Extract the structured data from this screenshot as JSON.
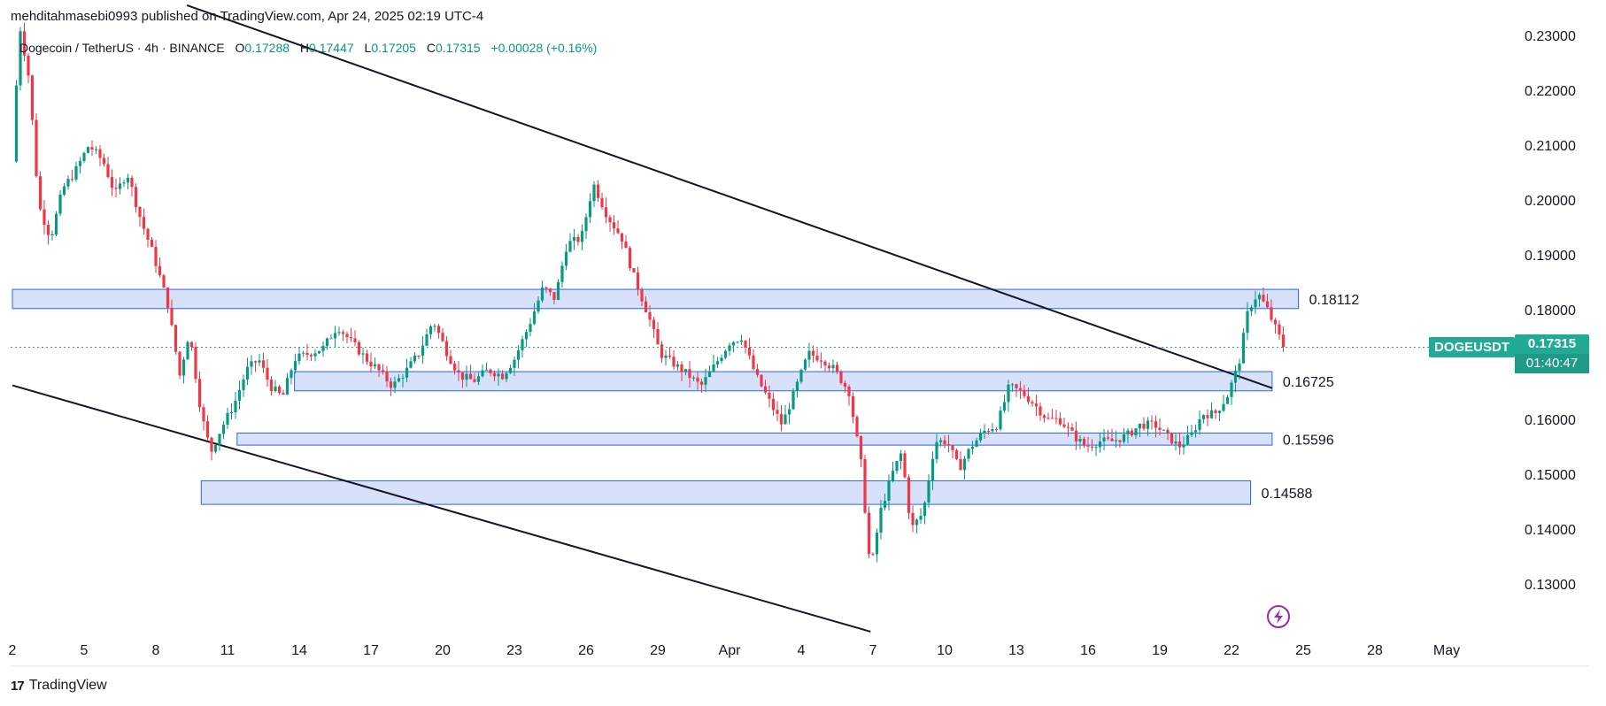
{
  "header": {
    "published_line": "mehditahmasebi0993 published on TradingView.com, Apr 24, 2025 02:19 UTC-4"
  },
  "legend": {
    "symbol": "Dogecoin / TetherUS · 4h · BINANCE",
    "open_label": "O",
    "open": "0.17288",
    "high_label": "H",
    "high": "0.17447",
    "low_label": "L",
    "low": "0.17205",
    "close_label": "C",
    "close": "0.17315",
    "change": "+0.00028 (+0.16%)"
  },
  "price_tag": {
    "symbol": "DOGEUSDT",
    "price": "0.17315",
    "countdown": "01:40:47"
  },
  "brand": {
    "logo_text": "17",
    "name": "TradingView"
  },
  "colors": {
    "up": "#089981",
    "down": "#f23645",
    "zone_fill": "#d1dcf9",
    "zone_stroke": "#2962ff",
    "trendline": "#131722",
    "price_line": "#22ab94",
    "lightning": "#9c27b0"
  },
  "chart_data": {
    "type": "candlestick",
    "symbol": "DOGEUSDT",
    "timeframe": "4h",
    "ylim": [
      0.125,
      0.235
    ],
    "y_ticks": [
      "0.23000",
      "0.22000",
      "0.21000",
      "0.20000",
      "0.19000",
      "0.18000",
      "0.16000",
      "0.15000",
      "0.14000",
      "0.13000"
    ],
    "x_ticks": [
      "2",
      "5",
      "8",
      "11",
      "14",
      "17",
      "20",
      "23",
      "26",
      "29",
      "Apr",
      "4",
      "7",
      "10",
      "13",
      "16",
      "19",
      "22",
      "25",
      "28",
      "May"
    ],
    "x_tick_days": [
      2,
      5,
      8,
      11,
      14,
      17,
      20,
      23,
      26,
      29,
      32,
      35,
      38,
      41,
      44,
      47,
      50,
      53,
      56,
      59,
      62
    ],
    "last_price": 0.17315,
    "zones": [
      {
        "label": "0.18112",
        "top": 0.1837,
        "bottom": 0.1802,
        "start_day": 2.0,
        "end_day": 55.8
      },
      {
        "label": "0.16725",
        "top": 0.1687,
        "bottom": 0.1652,
        "start_day": 13.8,
        "end_day": 54.7
      },
      {
        "label": "0.15596",
        "top": 0.1575,
        "bottom": 0.1553,
        "start_day": 11.4,
        "end_day": 54.7
      },
      {
        "label": "0.14588",
        "top": 0.1488,
        "bottom": 0.1445,
        "start_day": 9.9,
        "end_day": 53.8
      }
    ],
    "trendlines": [
      {
        "name": "upper",
        "x1": 9.3,
        "y1": 0.2355,
        "x2": 54.7,
        "y2": 0.1657
      },
      {
        "name": "lower",
        "x1": 2.0,
        "y1": 0.1662,
        "x2": 37.9,
        "y2": 0.1213
      }
    ],
    "price_path": [
      [
        2.0,
        0.207
      ],
      [
        2.3,
        0.232
      ],
      [
        2.7,
        0.222
      ],
      [
        3.1,
        0.199
      ],
      [
        3.6,
        0.193
      ],
      [
        4.1,
        0.202
      ],
      [
        4.6,
        0.205
      ],
      [
        5.2,
        0.21
      ],
      [
        5.8,
        0.207
      ],
      [
        6.3,
        0.201
      ],
      [
        6.8,
        0.205
      ],
      [
        7.4,
        0.196
      ],
      [
        7.9,
        0.19
      ],
      [
        8.5,
        0.181
      ],
      [
        9.0,
        0.168
      ],
      [
        9.4,
        0.176
      ],
      [
        9.9,
        0.161
      ],
      [
        10.3,
        0.154
      ],
      [
        10.7,
        0.158
      ],
      [
        11.3,
        0.163
      ],
      [
        11.8,
        0.169
      ],
      [
        12.3,
        0.171
      ],
      [
        12.8,
        0.166
      ],
      [
        13.3,
        0.164
      ],
      [
        13.8,
        0.171
      ],
      [
        14.4,
        0.172
      ],
      [
        15.0,
        0.173
      ],
      [
        15.6,
        0.177
      ],
      [
        16.2,
        0.174
      ],
      [
        16.8,
        0.171
      ],
      [
        17.3,
        0.169
      ],
      [
        17.9,
        0.166
      ],
      [
        18.5,
        0.169
      ],
      [
        19.0,
        0.172
      ],
      [
        19.6,
        0.178
      ],
      [
        20.2,
        0.172
      ],
      [
        20.7,
        0.168
      ],
      [
        21.3,
        0.167
      ],
      [
        21.9,
        0.169
      ],
      [
        22.5,
        0.168
      ],
      [
        23.0,
        0.171
      ],
      [
        23.6,
        0.177
      ],
      [
        24.2,
        0.184
      ],
      [
        24.7,
        0.182
      ],
      [
        25.2,
        0.192
      ],
      [
        25.8,
        0.193
      ],
      [
        26.3,
        0.203
      ],
      [
        26.9,
        0.197
      ],
      [
        27.5,
        0.193
      ],
      [
        28.0,
        0.186
      ],
      [
        28.6,
        0.179
      ],
      [
        29.1,
        0.172
      ],
      [
        29.7,
        0.17
      ],
      [
        30.3,
        0.168
      ],
      [
        30.8,
        0.166
      ],
      [
        31.4,
        0.17
      ],
      [
        32.0,
        0.174
      ],
      [
        32.5,
        0.175
      ],
      [
        33.1,
        0.168
      ],
      [
        33.7,
        0.163
      ],
      [
        34.2,
        0.159
      ],
      [
        34.8,
        0.166
      ],
      [
        35.3,
        0.172
      ],
      [
        35.9,
        0.171
      ],
      [
        36.4,
        0.169
      ],
      [
        37.0,
        0.165
      ],
      [
        37.5,
        0.152
      ],
      [
        37.9,
        0.132
      ],
      [
        38.3,
        0.143
      ],
      [
        38.8,
        0.15
      ],
      [
        39.2,
        0.154
      ],
      [
        39.6,
        0.14
      ],
      [
        40.1,
        0.143
      ],
      [
        40.6,
        0.156
      ],
      [
        41.1,
        0.156
      ],
      [
        41.6,
        0.151
      ],
      [
        42.1,
        0.155
      ],
      [
        42.7,
        0.158
      ],
      [
        43.2,
        0.159
      ],
      [
        43.7,
        0.166
      ],
      [
        44.2,
        0.165
      ],
      [
        44.7,
        0.163
      ],
      [
        45.3,
        0.16
      ],
      [
        45.8,
        0.16
      ],
      [
        46.4,
        0.157
      ],
      [
        46.9,
        0.155
      ],
      [
        47.5,
        0.156
      ],
      [
        48.0,
        0.156
      ],
      [
        48.6,
        0.157
      ],
      [
        49.2,
        0.159
      ],
      [
        49.8,
        0.159
      ],
      [
        50.3,
        0.157
      ],
      [
        50.8,
        0.155
      ],
      [
        51.3,
        0.157
      ],
      [
        51.8,
        0.161
      ],
      [
        52.3,
        0.161
      ],
      [
        52.8,
        0.164
      ],
      [
        53.3,
        0.17
      ],
      [
        53.7,
        0.18
      ],
      [
        54.1,
        0.183
      ],
      [
        54.5,
        0.18
      ],
      [
        54.9,
        0.176
      ],
      [
        55.2,
        0.1731
      ]
    ]
  }
}
